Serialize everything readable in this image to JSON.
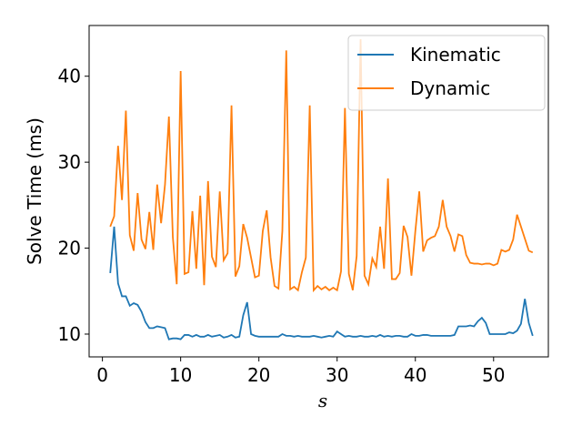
{
  "chart_data": {
    "type": "line",
    "x_label": "s",
    "y_label": "Solve Time (ms)",
    "x": [
      1,
      1.5,
      2,
      2.5,
      3,
      3.5,
      4,
      4.5,
      5,
      5.5,
      6,
      6.5,
      7,
      7.5,
      8,
      8.5,
      9,
      9.5,
      10,
      10.5,
      11,
      11.5,
      12,
      12.5,
      13,
      13.5,
      14,
      14.5,
      15,
      15.5,
      16,
      16.5,
      17,
      17.5,
      18,
      18.5,
      19,
      19.5,
      20,
      20.5,
      21,
      21.5,
      22,
      22.5,
      23,
      23.5,
      24,
      24.5,
      25,
      25.5,
      26,
      26.5,
      27,
      27.5,
      28,
      28.5,
      29,
      29.5,
      30,
      30.5,
      31,
      31.5,
      32,
      32.5,
      33,
      33.5,
      34,
      34.5,
      35,
      35.5,
      36,
      36.5,
      37,
      37.5,
      38,
      38.5,
      39,
      39.5,
      40,
      40.5,
      41,
      41.5,
      42,
      42.5,
      43,
      43.5,
      44,
      44.5,
      45,
      45.5,
      46,
      46.5,
      47,
      47.5,
      48,
      48.5,
      49,
      49.5,
      50,
      50.5,
      51,
      51.5,
      52,
      52.5,
      53,
      53.5,
      54,
      54.5,
      55
    ],
    "series": [
      {
        "name": "Kinematic",
        "color": "#1f77b4",
        "values": [
          17.1,
          22.5,
          15.9,
          14.4,
          14.4,
          13.3,
          13.6,
          13.4,
          12.6,
          11.4,
          10.7,
          10.7,
          10.9,
          10.8,
          10.7,
          9.4,
          9.5,
          9.5,
          9.4,
          9.9,
          9.9,
          9.7,
          9.9,
          9.7,
          9.7,
          9.9,
          9.7,
          9.8,
          9.9,
          9.6,
          9.7,
          9.9,
          9.6,
          9.7,
          12.2,
          13.7,
          10,
          9.8,
          9.7,
          9.7,
          9.7,
          9.7,
          9.7,
          9.7,
          10,
          9.8,
          9.8,
          9.7,
          9.8,
          9.7,
          9.7,
          9.7,
          9.8,
          9.7,
          9.6,
          9.7,
          9.8,
          9.7,
          10.3,
          10,
          9.7,
          9.8,
          9.7,
          9.7,
          9.8,
          9.7,
          9.7,
          9.8,
          9.7,
          9.9,
          9.7,
          9.8,
          9.7,
          9.8,
          9.8,
          9.7,
          9.7,
          10,
          9.8,
          9.8,
          9.9,
          9.9,
          9.8,
          9.8,
          9.8,
          9.8,
          9.8,
          9.8,
          9.9,
          10.9,
          10.9,
          10.9,
          11,
          10.9,
          11.5,
          11.9,
          11.3,
          10,
          10,
          10,
          10,
          10,
          10.2,
          10.1,
          10.4,
          11.2,
          14.1,
          11.3,
          9.8
        ]
      },
      {
        "name": "Dynamic",
        "color": "#ff7f0e",
        "values": [
          22.5,
          23.7,
          31.9,
          25.6,
          36,
          21.5,
          19.7,
          26.4,
          21,
          19.9,
          24.2,
          19.8,
          27.4,
          22.9,
          27.4,
          35.3,
          21.3,
          15.8,
          40.6,
          17,
          17.2,
          24.3,
          17.6,
          26.1,
          15.7,
          27.8,
          19,
          17.8,
          26.6,
          18.6,
          19.4,
          36.6,
          16.7,
          17.9,
          22.8,
          21.2,
          18.9,
          16.6,
          16.8,
          22,
          24.4,
          18.9,
          15.6,
          15.3,
          22,
          43,
          15.2,
          15.5,
          15.1,
          17.2,
          18.9,
          36.6,
          15.1,
          15.6,
          15.2,
          15.5,
          15.1,
          15.4,
          15.1,
          17.3,
          36.3,
          17,
          15.1,
          19.1,
          44.3,
          16.8,
          15.8,
          18.8,
          17.8,
          22.5,
          17.6,
          28.1,
          16.4,
          16.4,
          17.1,
          22.6,
          21.3,
          16.8,
          22,
          26.6,
          19.6,
          20.9,
          21.2,
          21.4,
          22.5,
          25.6,
          22.5,
          21.4,
          19.6,
          21.6,
          21.4,
          19.2,
          18.3,
          18.2,
          18.2,
          18.1,
          18.2,
          18.2,
          18,
          18.2,
          19.8,
          19.6,
          19.8,
          21,
          23.9,
          22.5,
          21.1,
          19.7,
          19.5
        ]
      }
    ],
    "xlim": [
      -1.7,
      57.0
    ],
    "ylim": [
      7.35,
      45.9
    ],
    "xticks": [
      0,
      10,
      20,
      30,
      40,
      50
    ],
    "yticks": [
      10,
      20,
      30,
      40
    ],
    "legend": "upper right"
  }
}
